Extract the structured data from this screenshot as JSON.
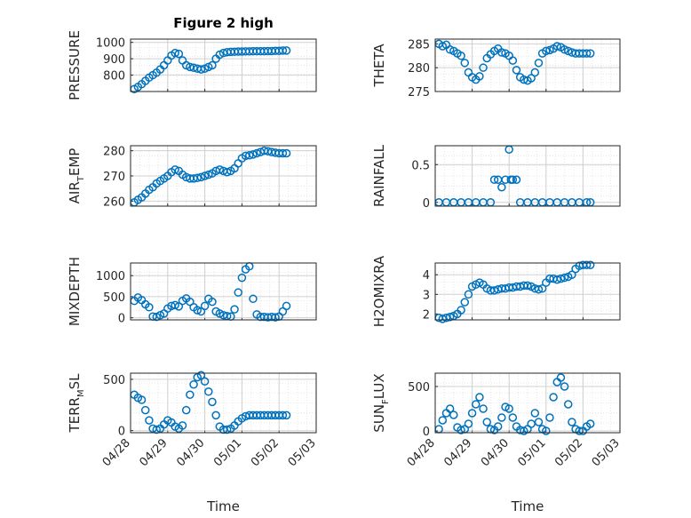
{
  "figure": {
    "title": "Figure 2 high",
    "xlabel": "Time"
  },
  "colors": {
    "marker": "#0072BD",
    "axis": "#262626",
    "grid": "#d0d0d0"
  },
  "chart_data": [
    {
      "id": "pressure",
      "type": "scatter",
      "ylabel": "PRESSURE",
      "ylim": [
        700,
        1020
      ],
      "yticks": [
        800,
        900,
        1000
      ],
      "title": "Figure 2 high",
      "xticks": [
        "04/28",
        "04/29",
        "04/30",
        "05/01",
        "05/02",
        "05/03"
      ],
      "xlim": [
        0,
        5
      ],
      "x": [
        0.1,
        0.2,
        0.3,
        0.4,
        0.5,
        0.6,
        0.7,
        0.8,
        0.9,
        1.0,
        1.1,
        1.2,
        1.3,
        1.4,
        1.5,
        1.6,
        1.7,
        1.8,
        1.9,
        2.0,
        2.1,
        2.2,
        2.3,
        2.4,
        2.5,
        2.6,
        2.7,
        2.8,
        2.9,
        3.0,
        3.1,
        3.2,
        3.3,
        3.4,
        3.5,
        3.6,
        3.7,
        3.8,
        3.9,
        4.0,
        4.1,
        4.2
      ],
      "y": [
        715,
        728,
        745,
        765,
        785,
        800,
        815,
        835,
        860,
        890,
        920,
        935,
        930,
        890,
        860,
        850,
        845,
        840,
        835,
        840,
        850,
        860,
        900,
        925,
        935,
        940,
        942,
        943,
        944,
        944,
        945,
        945,
        946,
        946,
        946,
        946,
        947,
        947,
        948,
        948,
        950,
        950
      ]
    },
    {
      "id": "theta",
      "type": "scatter",
      "ylabel": "THETA",
      "ylim": [
        275,
        286
      ],
      "yticks": [
        275,
        280,
        285
      ],
      "xticks": [
        "04/28",
        "04/29",
        "04/30",
        "05/01",
        "05/02",
        "05/03"
      ],
      "xlim": [
        0,
        5
      ],
      "x": [
        0.1,
        0.2,
        0.3,
        0.4,
        0.5,
        0.6,
        0.7,
        0.8,
        0.9,
        1.0,
        1.1,
        1.2,
        1.3,
        1.4,
        1.5,
        1.6,
        1.7,
        1.8,
        1.9,
        2.0,
        2.1,
        2.2,
        2.3,
        2.4,
        2.5,
        2.6,
        2.7,
        2.8,
        2.9,
        3.0,
        3.1,
        3.2,
        3.3,
        3.4,
        3.5,
        3.6,
        3.7,
        3.8,
        3.9,
        4.0,
        4.1,
        4.2
      ],
      "y": [
        285,
        284.5,
        284.8,
        283.8,
        283.5,
        283,
        282.5,
        281,
        279,
        278,
        277.5,
        278.2,
        280,
        282,
        282.8,
        283.5,
        284,
        283.2,
        283,
        282.5,
        281.5,
        279.5,
        278,
        277.5,
        277.3,
        277.8,
        279,
        281,
        283,
        283.5,
        283.7,
        284,
        284.5,
        284.3,
        283.8,
        283.5,
        283.2,
        283,
        283,
        283,
        283,
        283
      ]
    },
    {
      "id": "air_temp",
      "type": "scatter",
      "ylabel": "AIR",
      "ylabel_sub": "T",
      "ylabel_rest": "EMP",
      "ylim": [
        258,
        282
      ],
      "yticks": [
        260,
        270,
        280
      ],
      "xticks": [
        "04/28",
        "04/29",
        "04/30",
        "05/01",
        "05/02",
        "05/03"
      ],
      "xlim": [
        0,
        5
      ],
      "x": [
        0.1,
        0.2,
        0.3,
        0.4,
        0.5,
        0.6,
        0.7,
        0.8,
        0.9,
        1.0,
        1.1,
        1.2,
        1.3,
        1.4,
        1.5,
        1.6,
        1.7,
        1.8,
        1.9,
        2.0,
        2.1,
        2.2,
        2.3,
        2.4,
        2.5,
        2.6,
        2.7,
        2.8,
        2.9,
        3.0,
        3.1,
        3.2,
        3.3,
        3.4,
        3.5,
        3.6,
        3.7,
        3.8,
        3.9,
        4.0,
        4.1,
        4.2
      ],
      "y": [
        259.5,
        260.5,
        261.5,
        263,
        264.5,
        265.5,
        267,
        268,
        269,
        270,
        271.5,
        272.5,
        272,
        270.5,
        269.5,
        269,
        269,
        269.2,
        269.5,
        270,
        270.5,
        271,
        272,
        272.5,
        272,
        271.5,
        272,
        273,
        275,
        277,
        278,
        278.2,
        278.5,
        279,
        279.5,
        280,
        279.8,
        279.5,
        279.2,
        279,
        279,
        279
      ]
    },
    {
      "id": "rainfall",
      "type": "scatter",
      "ylabel": "RAINFALL",
      "ylim": [
        -0.05,
        0.75
      ],
      "yticks": [
        0,
        0.5
      ],
      "ytick_labels": [
        "0",
        "0.5"
      ],
      "xticks": [
        "04/28",
        "04/29",
        "04/30",
        "05/01",
        "05/02",
        "05/03"
      ],
      "xlim": [
        0,
        5
      ],
      "x": [
        0.1,
        0.3,
        0.5,
        0.7,
        0.9,
        1.1,
        1.3,
        1.5,
        1.6,
        1.7,
        1.8,
        1.9,
        2.0,
        2.05,
        2.1,
        2.2,
        2.3,
        2.5,
        2.7,
        2.9,
        3.1,
        3.3,
        3.5,
        3.7,
        3.9,
        4.1,
        4.2
      ],
      "y": [
        0,
        0,
        0,
        0,
        0,
        0,
        0,
        0,
        0.3,
        0.3,
        0.2,
        0.3,
        0.7,
        0.3,
        0.3,
        0.3,
        0,
        0,
        0,
        0,
        0,
        0,
        0,
        0,
        0,
        0,
        0
      ]
    },
    {
      "id": "mixdepth",
      "type": "scatter",
      "ylabel": "MIXDEPTH",
      "ylim": [
        -50,
        1300
      ],
      "yticks": [
        0,
        500,
        1000
      ],
      "xticks": [
        "04/28",
        "04/29",
        "04/30",
        "05/01",
        "05/02",
        "05/03"
      ],
      "xlim": [
        0,
        5
      ],
      "x": [
        0.1,
        0.2,
        0.3,
        0.4,
        0.5,
        0.6,
        0.7,
        0.8,
        0.9,
        1.0,
        1.1,
        1.2,
        1.3,
        1.4,
        1.5,
        1.6,
        1.7,
        1.8,
        1.9,
        2.0,
        2.1,
        2.2,
        2.3,
        2.4,
        2.5,
        2.6,
        2.7,
        2.8,
        2.9,
        3.0,
        3.1,
        3.2,
        3.3,
        3.4,
        3.5,
        3.6,
        3.7,
        3.8,
        3.9,
        4.0,
        4.1,
        4.2
      ],
      "y": [
        400,
        480,
        420,
        320,
        250,
        30,
        20,
        60,
        100,
        220,
        280,
        300,
        270,
        400,
        460,
        380,
        250,
        180,
        150,
        280,
        450,
        380,
        150,
        100,
        60,
        40,
        30,
        200,
        600,
        950,
        1150,
        1220,
        450,
        80,
        20,
        20,
        10,
        20,
        10,
        30,
        150,
        280
      ]
    },
    {
      "id": "h2omixra",
      "type": "scatter",
      "ylabel": "H2OMIXRA",
      "ylim": [
        1.7,
        4.6
      ],
      "yticks": [
        2,
        3,
        4
      ],
      "xticks": [
        "04/28",
        "04/29",
        "04/30",
        "05/01",
        "05/02",
        "05/03"
      ],
      "xlim": [
        0,
        5
      ],
      "x": [
        0.1,
        0.2,
        0.3,
        0.4,
        0.5,
        0.6,
        0.7,
        0.8,
        0.9,
        1.0,
        1.1,
        1.2,
        1.3,
        1.4,
        1.5,
        1.6,
        1.7,
        1.8,
        1.9,
        2.0,
        2.1,
        2.2,
        2.3,
        2.4,
        2.5,
        2.6,
        2.7,
        2.8,
        2.9,
        3.0,
        3.1,
        3.2,
        3.3,
        3.4,
        3.5,
        3.6,
        3.7,
        3.8,
        3.9,
        4.0,
        4.1,
        4.2
      ],
      "y": [
        1.8,
        1.75,
        1.8,
        1.85,
        1.9,
        2.0,
        2.2,
        2.6,
        3.0,
        3.4,
        3.5,
        3.6,
        3.5,
        3.3,
        3.2,
        3.2,
        3.25,
        3.3,
        3.3,
        3.35,
        3.35,
        3.4,
        3.4,
        3.45,
        3.45,
        3.4,
        3.3,
        3.25,
        3.3,
        3.6,
        3.8,
        3.8,
        3.75,
        3.8,
        3.85,
        3.9,
        4.0,
        4.3,
        4.45,
        4.5,
        4.5,
        4.5
      ]
    },
    {
      "id": "terr_msl",
      "type": "scatter",
      "ylabel": "TERR",
      "ylabel_sub": "M",
      "ylabel_rest": "SL",
      "ylim": [
        -20,
        560
      ],
      "yticks": [
        0,
        500
      ],
      "xticks": [
        "04/28",
        "04/29",
        "04/30",
        "05/01",
        "05/02",
        "05/03"
      ],
      "xlim": [
        0,
        5
      ],
      "x": [
        0.1,
        0.2,
        0.3,
        0.4,
        0.5,
        0.6,
        0.7,
        0.8,
        0.9,
        1.0,
        1.1,
        1.2,
        1.3,
        1.4,
        1.5,
        1.6,
        1.7,
        1.8,
        1.9,
        2.0,
        2.1,
        2.2,
        2.3,
        2.4,
        2.5,
        2.6,
        2.7,
        2.8,
        2.9,
        3.0,
        3.1,
        3.2,
        3.3,
        3.4,
        3.5,
        3.6,
        3.7,
        3.8,
        3.9,
        4.0,
        4.1,
        4.2
      ],
      "y": [
        350,
        320,
        300,
        200,
        100,
        20,
        10,
        20,
        60,
        100,
        80,
        40,
        20,
        50,
        200,
        350,
        450,
        520,
        540,
        480,
        380,
        280,
        150,
        40,
        10,
        10,
        20,
        50,
        90,
        120,
        140,
        150,
        150,
        150,
        150,
        150,
        150,
        150,
        150,
        150,
        150,
        150
      ]
    },
    {
      "id": "sun_flux",
      "type": "scatter",
      "ylabel": "SUN",
      "ylabel_sub": "F",
      "ylabel_rest": "LUX",
      "ylim": [
        -20,
        650
      ],
      "yticks": [
        0,
        500
      ],
      "xticks": [
        "04/28",
        "04/29",
        "04/30",
        "05/01",
        "05/02",
        "05/03"
      ],
      "xlim": [
        0,
        5
      ],
      "x": [
        0.1,
        0.2,
        0.3,
        0.4,
        0.5,
        0.6,
        0.7,
        0.8,
        0.9,
        1.0,
        1.1,
        1.2,
        1.3,
        1.4,
        1.5,
        1.6,
        1.7,
        1.8,
        1.9,
        2.0,
        2.1,
        2.2,
        2.3,
        2.4,
        2.5,
        2.6,
        2.7,
        2.8,
        2.9,
        3.0,
        3.1,
        3.2,
        3.3,
        3.4,
        3.5,
        3.6,
        3.7,
        3.8,
        3.9,
        4.0,
        4.1,
        4.2
      ],
      "y": [
        20,
        120,
        200,
        250,
        180,
        40,
        10,
        20,
        80,
        200,
        300,
        380,
        250,
        100,
        20,
        10,
        50,
        150,
        270,
        250,
        150,
        50,
        10,
        0,
        20,
        80,
        200,
        100,
        20,
        0,
        150,
        380,
        550,
        600,
        500,
        300,
        100,
        20,
        0,
        0,
        50,
        80
      ]
    }
  ]
}
